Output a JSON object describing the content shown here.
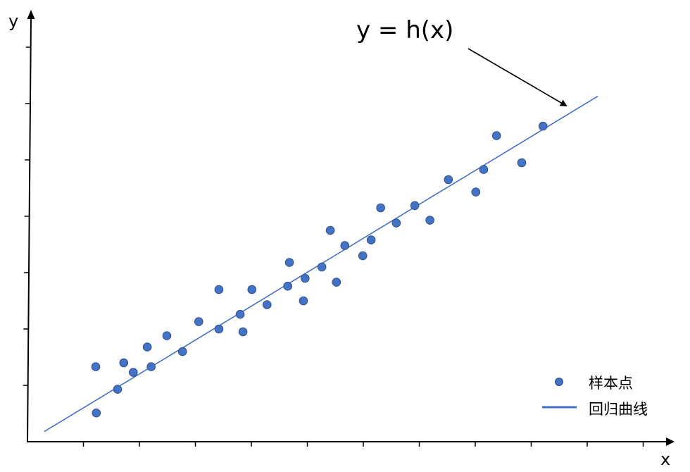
{
  "chart_data": {
    "type": "scatter",
    "title": "",
    "xlabel": "x",
    "ylabel": "y",
    "xlim": [
      0,
      11.5
    ],
    "ylim": [
      0,
      7.5
    ],
    "x_ticks": [
      1,
      2,
      3,
      4,
      5,
      6,
      7,
      8,
      9,
      10,
      11
    ],
    "y_ticks": [
      1,
      2,
      3,
      4,
      5,
      6,
      7
    ],
    "tick_labels_shown": false,
    "grid": false,
    "legend": {
      "placement": "bottom-right",
      "entries": [
        "样本点",
        "回归曲线"
      ]
    },
    "colors": {
      "points": "#4472C4",
      "line": "#4472C4",
      "point_edge": "#2F528F"
    },
    "annotation": {
      "text": "y = h(x)",
      "arrow_to": "regression line"
    },
    "series": [
      {
        "name": "样本点",
        "type": "scatter",
        "points": [
          [
            1.22,
            1.33
          ],
          [
            1.23,
            0.51
          ],
          [
            1.61,
            0.93
          ],
          [
            1.72,
            1.4
          ],
          [
            1.89,
            1.23
          ],
          [
            2.14,
            1.68
          ],
          [
            2.21,
            1.33
          ],
          [
            2.49,
            1.88
          ],
          [
            2.77,
            1.6
          ],
          [
            3.06,
            2.13
          ],
          [
            3.42,
            2.7
          ],
          [
            3.42,
            2.0
          ],
          [
            3.8,
            2.26
          ],
          [
            3.85,
            1.95
          ],
          [
            4.01,
            2.7
          ],
          [
            4.28,
            2.43
          ],
          [
            4.65,
            2.76
          ],
          [
            4.68,
            3.18
          ],
          [
            4.93,
            2.5
          ],
          [
            4.96,
            2.9
          ],
          [
            5.26,
            3.1
          ],
          [
            5.41,
            3.75
          ],
          [
            5.52,
            2.83
          ],
          [
            5.67,
            3.48
          ],
          [
            5.99,
            3.3
          ],
          [
            6.14,
            3.58
          ],
          [
            6.31,
            4.15
          ],
          [
            6.59,
            3.88
          ],
          [
            6.92,
            4.19
          ],
          [
            7.19,
            3.93
          ],
          [
            7.52,
            4.65
          ],
          [
            8.01,
            4.43
          ],
          [
            8.15,
            4.83
          ],
          [
            8.38,
            5.43
          ],
          [
            8.83,
            4.95
          ],
          [
            9.21,
            5.6
          ]
        ]
      },
      {
        "name": "回归曲线",
        "type": "line",
        "points": [
          [
            0.3,
            0.18
          ],
          [
            10.19,
            6.13
          ]
        ]
      }
    ]
  }
}
